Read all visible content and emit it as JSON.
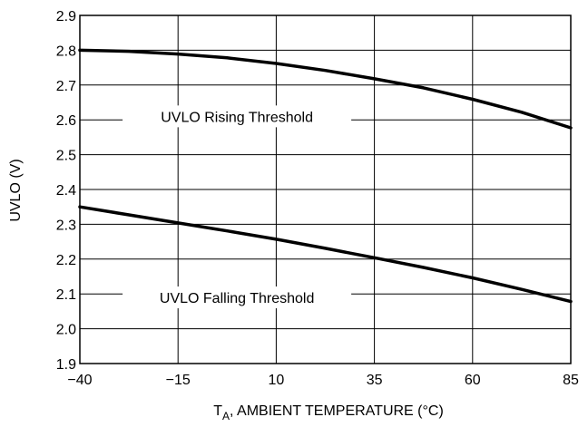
{
  "chart_data": {
    "type": "line",
    "title": "",
    "xlabel_main": "T",
    "xlabel_sub": "A",
    "xlabel_rest": ", AMBIENT TEMPERATURE (°C)",
    "ylabel": "UVLO (V)",
    "xlim": [
      -40,
      85
    ],
    "ylim": [
      1.9,
      2.9
    ],
    "x_ticks": [
      -40,
      -15,
      10,
      35,
      60,
      85
    ],
    "x_tick_labels": [
      "−40",
      "−15",
      "10",
      "35",
      "60",
      "85"
    ],
    "y_ticks": [
      1.9,
      2.0,
      2.1,
      2.2,
      2.3,
      2.4,
      2.5,
      2.6,
      2.7,
      2.8,
      2.9
    ],
    "y_tick_labels": [
      "1.9",
      "2.0",
      "2.1",
      "2.2",
      "2.3",
      "2.4",
      "2.5",
      "2.6",
      "2.7",
      "2.8",
      "2.9"
    ],
    "grid": true,
    "series": [
      {
        "label": "UVLO Rising Threshold",
        "label_at": [
          0,
          2.61
        ],
        "x": [
          -40,
          -27.5,
          -15,
          -2.5,
          10,
          22.5,
          35,
          47.5,
          60,
          72.5,
          85
        ],
        "y": [
          2.8,
          2.797,
          2.789,
          2.778,
          2.762,
          2.742,
          2.718,
          2.692,
          2.659,
          2.622,
          2.577
        ]
      },
      {
        "label": "UVLO Falling Threshold",
        "label_at": [
          0,
          2.09
        ],
        "x": [
          -40,
          -27.5,
          -15,
          -2.5,
          10,
          22.5,
          35,
          47.5,
          60,
          72.5,
          85
        ],
        "y": [
          2.35,
          2.327,
          2.304,
          2.281,
          2.257,
          2.231,
          2.204,
          2.176,
          2.146,
          2.113,
          2.078
        ]
      }
    ]
  }
}
